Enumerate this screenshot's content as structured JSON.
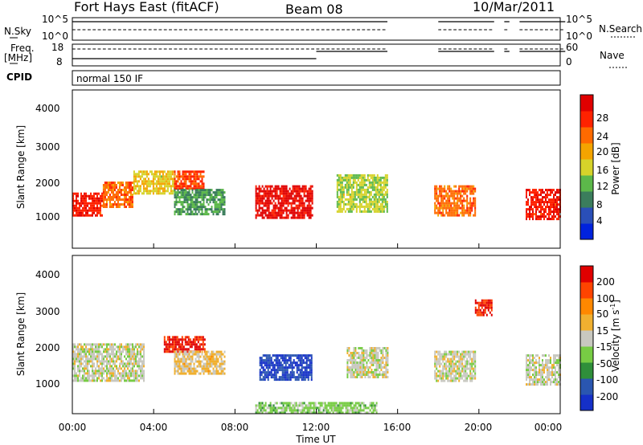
{
  "header": {
    "station": "Fort Hays East (fitACF)",
    "beam": "Beam 08",
    "date": "10/Mar/2011"
  },
  "strip": {
    "nsky_label": "N.Sky",
    "nsearch_label": "N.Search",
    "freq_label": "Freq.",
    "freq_unit": "[MHz]",
    "nave_label": "Nave",
    "cpid_label": "CPID",
    "cpid_value": "normal 150 IF",
    "noise_ticks_left": [
      "10^5",
      "10^0"
    ],
    "noise_ticks_right": [
      "10^5",
      "10^0"
    ],
    "freq_ticks": [
      "18",
      "8"
    ],
    "nave_ticks": [
      "60",
      "0"
    ]
  },
  "panels": {
    "ylabel": "Slant Range [km]",
    "yticks": [
      "4000",
      "3000",
      "2000",
      "1000"
    ],
    "xlabel": "Time UT",
    "xticks": [
      "00:00",
      "04:00",
      "08:00",
      "12:00",
      "16:00",
      "20:00",
      "00:00"
    ]
  },
  "power_bar": {
    "title": "Power [dB]",
    "ticks": [
      "28",
      "24",
      "20",
      "16",
      "12",
      "8",
      "4"
    ],
    "colors": [
      "#0022dd",
      "#2a4fb8",
      "#3b7d5c",
      "#5cb84a",
      "#d6d32a",
      "#f4a400",
      "#ff6a00",
      "#ff2200",
      "#e00000"
    ]
  },
  "velocity_bar": {
    "title": "Velocity [m s",
    "title_sup": "-1",
    "title_end": "]",
    "ticks": [
      "200",
      "100",
      "50",
      "15",
      "-15",
      "-50",
      "-100",
      "-200"
    ],
    "colors": [
      "#1530c8",
      "#2a56b0",
      "#2f8f3a",
      "#77cc44",
      "#c8c8c0",
      "#f0b030",
      "#ff8800",
      "#ff4400",
      "#e00000"
    ]
  },
  "chart_data": [
    {
      "type": "heatmap",
      "title": "Fort Hays East (fitACF) Beam 08 10/Mar/2011",
      "quantity": "Power [dB]",
      "xlabel": "Time UT",
      "ylabel": "Slant Range [km]",
      "x_range_hours": [
        0,
        24
      ],
      "ylim": [
        180,
        4500
      ],
      "colorbar_range": [
        0,
        30
      ],
      "regions": [
        {
          "t": [
            0.0,
            1.5
          ],
          "r": [
            1050,
            1700
          ],
          "value": 26
        },
        {
          "t": [
            1.5,
            3.0
          ],
          "r": [
            1300,
            2000
          ],
          "value": 22
        },
        {
          "t": [
            3.0,
            5.0
          ],
          "r": [
            1700,
            2300
          ],
          "value": 16
        },
        {
          "t": [
            5.0,
            6.5
          ],
          "r": [
            1800,
            2300
          ],
          "value": 24
        },
        {
          "t": [
            5.0,
            7.5
          ],
          "r": [
            1100,
            1800
          ],
          "value": 10
        },
        {
          "t": [
            9.0,
            11.8
          ],
          "r": [
            1000,
            1900
          ],
          "value": 28
        },
        {
          "t": [
            13.0,
            15.5
          ],
          "r": [
            1200,
            2200
          ],
          "value": 14
        },
        {
          "t": [
            17.8,
            19.8
          ],
          "r": [
            1100,
            1900
          ],
          "value": 22
        },
        {
          "t": [
            22.3,
            24.0
          ],
          "r": [
            1000,
            1800
          ],
          "value": 26
        }
      ]
    },
    {
      "type": "heatmap",
      "title": "Fort Hays East (fitACF) Beam 08 10/Mar/2011",
      "quantity": "Velocity [m s-1]",
      "xlabel": "Time UT",
      "ylabel": "Slant Range [km]",
      "x_range_hours": [
        0,
        24
      ],
      "ylim": [
        180,
        4500
      ],
      "colorbar_range": [
        -250,
        250
      ],
      "regions": [
        {
          "t": [
            0.0,
            3.5
          ],
          "r": [
            1100,
            2100
          ],
          "value": 0
        },
        {
          "t": [
            4.5,
            6.5
          ],
          "r": [
            1900,
            2300
          ],
          "value": 200
        },
        {
          "t": [
            5.0,
            7.5
          ],
          "r": [
            1300,
            1900
          ],
          "value": 40
        },
        {
          "t": [
            9.2,
            11.8
          ],
          "r": [
            1100,
            1800
          ],
          "value": -200
        },
        {
          "t": [
            13.5,
            15.5
          ],
          "r": [
            1200,
            2000
          ],
          "value": 0
        },
        {
          "t": [
            17.8,
            19.8
          ],
          "r": [
            1100,
            1900
          ],
          "value": 0
        },
        {
          "t": [
            19.8,
            20.6
          ],
          "r": [
            2900,
            3300
          ],
          "value": 200
        },
        {
          "t": [
            22.3,
            24.0
          ],
          "r": [
            1000,
            1800
          ],
          "value": 0
        },
        {
          "t": [
            9.0,
            15.0
          ],
          "r": [
            200,
            500
          ],
          "value": -50
        }
      ]
    }
  ]
}
